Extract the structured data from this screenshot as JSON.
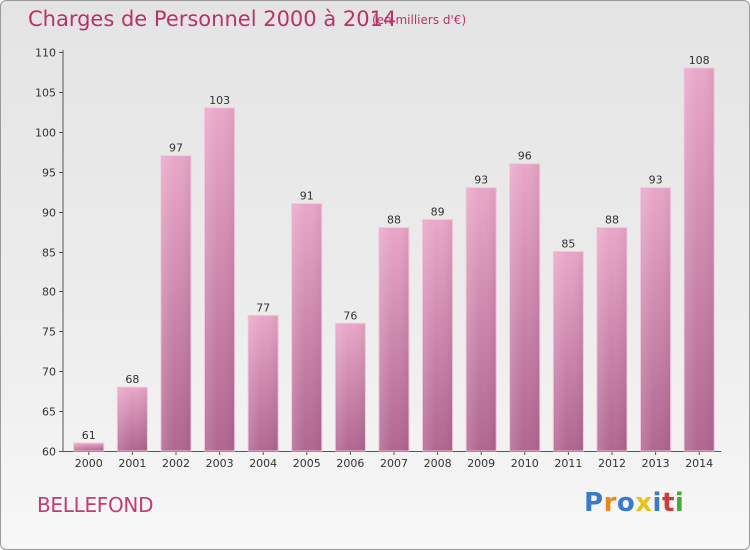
{
  "header": {
    "title": "Charges de Personnel 2000 à 2014",
    "subtitle": "(en milliers d'€)"
  },
  "footer": {
    "commune": "BELLEFOND",
    "logo": {
      "letters": [
        "P",
        "r",
        "o",
        "x",
        "i",
        "t",
        "i"
      ],
      "colors": [
        "#3a7bc8",
        "#e88a1a",
        "#3a7bc8",
        "#e8c21a",
        "#3a7bc8",
        "#d03a3a",
        "#48a83a"
      ]
    }
  },
  "chart_data": {
    "type": "bar",
    "categories": [
      "2000",
      "2001",
      "2002",
      "2003",
      "2004",
      "2005",
      "2006",
      "2007",
      "2008",
      "2009",
      "2010",
      "2011",
      "2012",
      "2013",
      "2014"
    ],
    "values": [
      61,
      68,
      97,
      103,
      77,
      91,
      76,
      88,
      89,
      93,
      96,
      85,
      88,
      93,
      108
    ],
    "value_labels": [
      "61",
      "68",
      "97",
      "103",
      "77",
      "91",
      "76",
      "88",
      "89",
      "93",
      "96",
      "85",
      "88",
      "93",
      "108"
    ],
    "ylim": [
      60,
      110
    ],
    "yticks": [
      60,
      65,
      70,
      75,
      80,
      85,
      90,
      95,
      100,
      105,
      110
    ],
    "xlabel": "",
    "ylabel": "",
    "grid": false,
    "bar_color": "#d38aae"
  }
}
